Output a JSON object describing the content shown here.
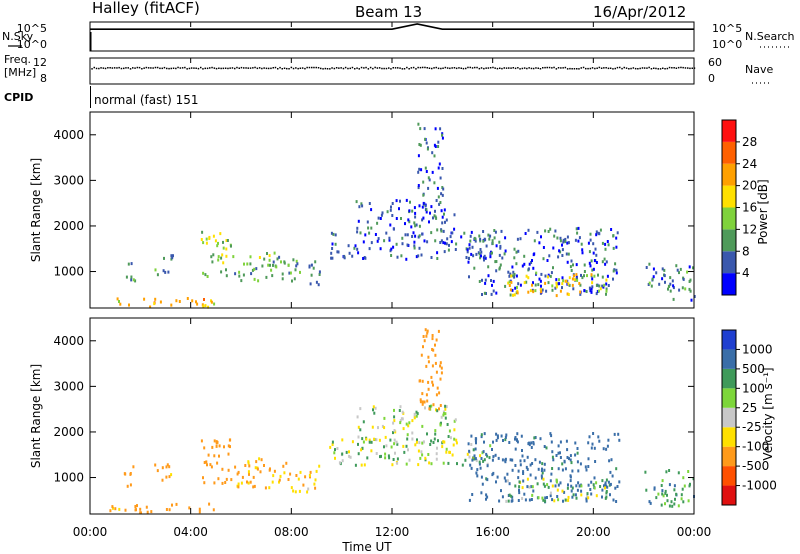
{
  "header": {
    "station": "Halley (fitACF)",
    "beam": "Beam 13",
    "date": "16/Apr/2012"
  },
  "strip_labels": {
    "nsky": "N.Sky",
    "nsearch": "N.Search",
    "freq_line1": "Freq.",
    "freq_line2": "[MHz]",
    "nave": "Nave",
    "cpid": "CPID",
    "cpid_value": "normal (fast) 151"
  },
  "strip_ticks": {
    "noise_left": [
      "10^5",
      "10^0"
    ],
    "noise_right": [
      "10^5",
      "10^0"
    ],
    "freq_left": [
      "12",
      "8"
    ],
    "freq_right": [
      "60",
      "0"
    ]
  },
  "xaxis": {
    "label": "Time UT",
    "ticks": [
      "00:00",
      "04:00",
      "08:00",
      "12:00",
      "16:00",
      "20:00",
      "00:00"
    ]
  },
  "power_panel": {
    "ylabel": "Slant Range [km]",
    "yticks": [
      "1000",
      "2000",
      "3000",
      "4000"
    ],
    "cbar_label": "Power [dB]",
    "cbar_ticks": [
      "4",
      "8",
      "12",
      "16",
      "20",
      "24",
      "28"
    ],
    "cbar_colors": [
      "#0000ff",
      "#3a58ad",
      "#4f9a5a",
      "#7fd23c",
      "#ffe000",
      "#ffa000",
      "#ff6000",
      "#ff1010"
    ]
  },
  "velocity_panel": {
    "ylabel": "Slant Range [km]",
    "yticks": [
      "1000",
      "2000",
      "3000",
      "4000"
    ],
    "cbar_label": "Velocity [m s⁻¹]",
    "cbar_ticks": [
      "1000",
      "500",
      "100",
      "25",
      "-25",
      "-100",
      "-500",
      "-1000"
    ],
    "cbar_colors": [
      "#1f3fd0",
      "#3a6ea8",
      "#3f9a5a",
      "#7dd63a",
      "#c8c8c8",
      "#ffe000",
      "#ff9a1a",
      "#ff5000",
      "#e01010"
    ]
  },
  "chart_data": [
    {
      "type": "line",
      "title": "N.Sky / N.Search",
      "x": [
        0,
        1,
        2,
        4,
        6,
        8,
        10,
        12,
        13,
        14,
        16,
        18,
        20,
        22,
        24
      ],
      "series": [
        {
          "name": "N.Sky",
          "values": [
            4,
            4,
            4,
            4,
            4,
            4,
            4,
            4,
            5,
            4,
            4,
            4,
            4,
            4,
            4
          ]
        }
      ],
      "ylim_log10": [
        0,
        5
      ],
      "xlim_hours": [
        0,
        24
      ]
    },
    {
      "type": "scatter",
      "title": "Freq. / Nave",
      "x": [
        0,
        2,
        4,
        6,
        8,
        10,
        12,
        14,
        16,
        18,
        20,
        22,
        24
      ],
      "series": [
        {
          "name": "Freq.",
          "values": [
            10.6,
            10.6,
            10.6,
            10.6,
            10.6,
            10.6,
            10.6,
            10.6,
            10.6,
            10.6,
            10.6,
            10.6,
            10.6
          ]
        },
        {
          "name": "Nave",
          "values": [
            30,
            29,
            30,
            30,
            29,
            30,
            30,
            29,
            30,
            30,
            29,
            30,
            30
          ]
        }
      ],
      "ylim": [
        8,
        12
      ]
    },
    {
      "type": "heatmap",
      "title": "Power",
      "xlabel": "Time UT",
      "ylabel": "Slant Range [km]",
      "xlim_hours": [
        0,
        24
      ],
      "ylim_km": [
        200,
        4500
      ],
      "zlim_db": [
        0,
        30
      ],
      "patches": [
        {
          "t0": 0.6,
          "t1": 5.0,
          "r0": 250,
          "r1": 450,
          "value": 20
        },
        {
          "t0": 1.3,
          "t1": 1.8,
          "r0": 800,
          "r1": 1300,
          "value": 9
        },
        {
          "t0": 2.5,
          "t1": 3.3,
          "r0": 950,
          "r1": 1400,
          "value": 9
        },
        {
          "t0": 4.4,
          "t1": 5.6,
          "r0": 900,
          "r1": 1900,
          "value": 14
        },
        {
          "t0": 5.6,
          "t1": 8.0,
          "r0": 800,
          "r1": 1450,
          "value": 12
        },
        {
          "t0": 8.0,
          "t1": 9.1,
          "r0": 700,
          "r1": 1300,
          "value": 9
        },
        {
          "t0": 9.5,
          "t1": 16.0,
          "r0": 1300,
          "r1": 1900,
          "value": 6
        },
        {
          "t0": 10.5,
          "t1": 14.5,
          "r0": 1800,
          "r1": 2600,
          "value": 5
        },
        {
          "t0": 13.0,
          "t1": 14.0,
          "r0": 2500,
          "r1": 4300,
          "value": 6
        },
        {
          "t0": 15.0,
          "t1": 21.0,
          "r0": 500,
          "r1": 2000,
          "value": 6
        },
        {
          "t0": 16.5,
          "t1": 20.5,
          "r0": 500,
          "r1": 1000,
          "value": 18
        },
        {
          "t0": 22.0,
          "t1": 24.0,
          "r0": 400,
          "r1": 1200,
          "value": 8
        }
      ]
    },
    {
      "type": "heatmap",
      "title": "Velocity",
      "xlabel": "Time UT",
      "ylabel": "Slant Range [km]",
      "xlim_hours": [
        0,
        24
      ],
      "ylim_km": [
        200,
        4500
      ],
      "zlim_ms": [
        -1000,
        1000
      ],
      "patches": [
        {
          "t0": 0.6,
          "t1": 5.0,
          "r0": 250,
          "r1": 450,
          "value": -150
        },
        {
          "t0": 1.3,
          "t1": 1.8,
          "r0": 800,
          "r1": 1300,
          "value": -150
        },
        {
          "t0": 2.5,
          "t1": 3.3,
          "r0": 950,
          "r1": 1400,
          "value": -150
        },
        {
          "t0": 4.4,
          "t1": 5.6,
          "r0": 900,
          "r1": 1900,
          "value": -200
        },
        {
          "t0": 5.6,
          "t1": 8.0,
          "r0": 800,
          "r1": 1450,
          "value": -120
        },
        {
          "t0": 8.0,
          "t1": 9.1,
          "r0": 700,
          "r1": 1300,
          "value": -80
        },
        {
          "t0": 9.5,
          "t1": 16.0,
          "r0": 1300,
          "r1": 1900,
          "value": 0
        },
        {
          "t0": 10.5,
          "t1": 14.5,
          "r0": 1800,
          "r1": 2600,
          "value": 0
        },
        {
          "t0": 13.0,
          "t1": 14.0,
          "r0": 2500,
          "r1": 4300,
          "value": -400
        },
        {
          "t0": 15.0,
          "t1": 21.0,
          "r0": 500,
          "r1": 2000,
          "value": 150
        },
        {
          "t0": 16.5,
          "t1": 20.5,
          "r0": 500,
          "r1": 1000,
          "value": 0
        },
        {
          "t0": 22.0,
          "t1": 24.0,
          "r0": 400,
          "r1": 1200,
          "value": 60
        }
      ]
    }
  ]
}
